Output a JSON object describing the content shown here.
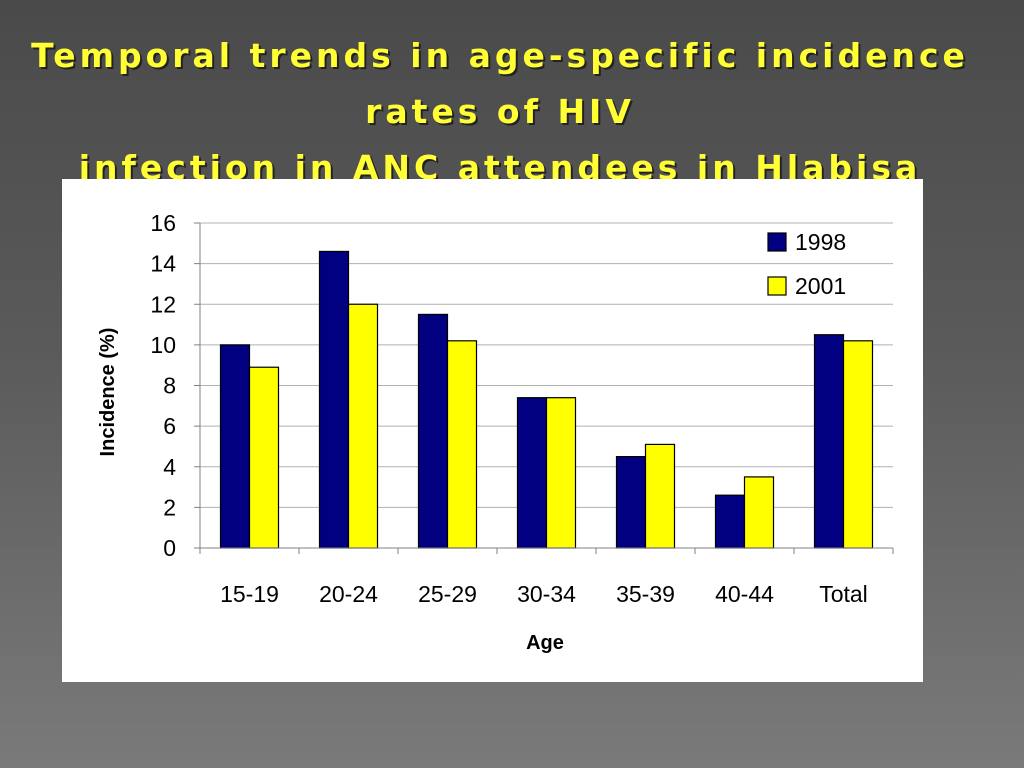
{
  "slide": {
    "title_line1": "Temporal trends in age-specific incidence rates of HIV",
    "title_line2": "infection in ANC attendees in Hlabisa"
  },
  "chart_data": {
    "type": "bar",
    "categories": [
      "15-19",
      "20-24",
      "25-29",
      "30-34",
      "35-39",
      "40-44",
      "Total"
    ],
    "series": [
      {
        "name": "1998",
        "color": "#000080",
        "values": [
          10.0,
          14.6,
          11.5,
          7.4,
          4.5,
          2.6,
          10.5
        ]
      },
      {
        "name": "2001",
        "color": "#ffff00",
        "values": [
          8.9,
          12.0,
          10.2,
          7.4,
          5.1,
          3.5,
          10.2
        ]
      }
    ],
    "xlabel": "Age",
    "ylabel": "Incidence (%)",
    "ylim": [
      0,
      16
    ],
    "yticks": [
      0,
      2,
      4,
      6,
      8,
      10,
      12,
      14,
      16
    ],
    "grid": true,
    "legend": "top-right"
  }
}
